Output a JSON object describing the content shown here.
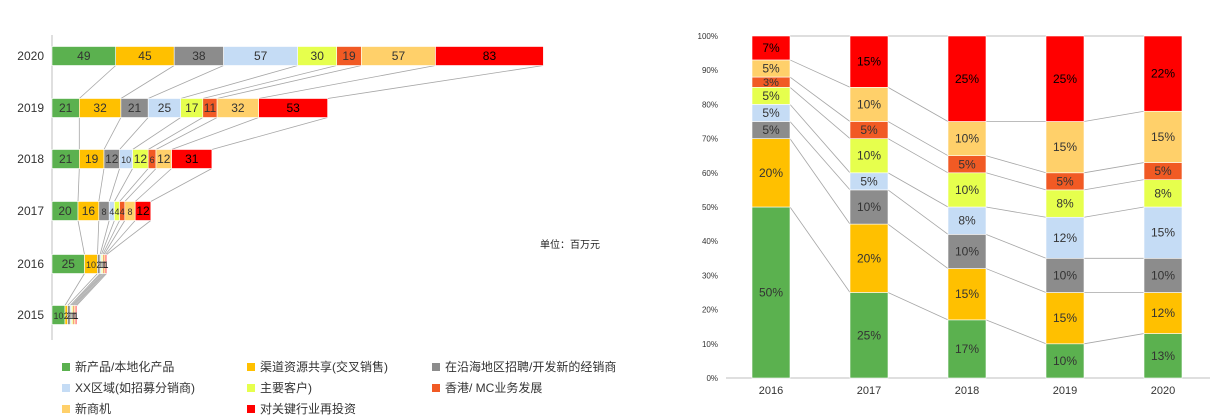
{
  "colors": [
    "#5BB14F",
    "#FFC000",
    "#8C8C8C",
    "#C5DCF5",
    "#E6FF4D",
    "#F15A24",
    "#FFD06A",
    "#FF0000"
  ],
  "unit_label": "单位：百万元",
  "legend": [
    "新产品/本地化产品",
    "渠道资源共享(交叉销售)",
    "在沿海地区招聘/开发新的经销商",
    "XX区域(如招募分销商)",
    "主要客户)",
    "香港/ MC业务发展",
    "新商机",
    "对关键行业再投资"
  ],
  "chart_data": [
    {
      "type": "bar",
      "orientation": "horizontal",
      "stacked": true,
      "categories": [
        "2020",
        "2019",
        "2018",
        "2017",
        "2016",
        "2015"
      ],
      "series": [
        {
          "name": "新产品/本地化产品",
          "values": [
            49,
            21,
            21,
            20,
            25,
            10
          ]
        },
        {
          "name": "渠道资源共享(交叉销售)",
          "values": [
            45,
            32,
            19,
            16,
            10,
            2
          ]
        },
        {
          "name": "在沿海地区招聘/开发新的经销商",
          "values": [
            38,
            21,
            12,
            8,
            2,
            2
          ]
        },
        {
          "name": "XX区域(如招募分销商)",
          "values": [
            57,
            25,
            10,
            4,
            1,
            1
          ]
        },
        {
          "name": "主要客户)",
          "values": [
            30,
            17,
            12,
            4,
            1,
            1
          ]
        },
        {
          "name": "香港/ MC业务发展",
          "values": [
            19,
            11,
            6,
            4,
            1,
            1
          ]
        },
        {
          "name": "新商机",
          "values": [
            57,
            32,
            12,
            8,
            1,
            1
          ]
        },
        {
          "name": "对关键行业再投资",
          "values": [
            83,
            53,
            31,
            12,
            1,
            1
          ]
        }
      ],
      "labels": [
        [
          "49",
          "45",
          "38",
          "57",
          "30",
          "19",
          "57",
          "83"
        ],
        [
          "21",
          "32",
          "21",
          "25",
          "17",
          "11",
          "32",
          "53"
        ],
        [
          "21",
          "19",
          "12",
          "10",
          "12",
          "6",
          "12",
          "31"
        ],
        [
          "20",
          "16",
          "8",
          "4",
          "4",
          "4",
          "8",
          "12"
        ],
        [
          "25",
          "10",
          "2",
          "1",
          "1",
          "1",
          "1",
          "1"
        ],
        [
          "10",
          "2",
          "2",
          "1",
          "1",
          "1",
          "1",
          "1"
        ]
      ]
    },
    {
      "type": "bar",
      "stacked": true,
      "percent": true,
      "categories": [
        "2016",
        "2017",
        "2018",
        "2019",
        "2020"
      ],
      "series": [
        {
          "name": "新产品/本地化产品",
          "values": [
            50,
            25,
            17,
            10,
            13
          ]
        },
        {
          "name": "渠道资源共享(交叉销售)",
          "values": [
            20,
            20,
            15,
            15,
            12
          ]
        },
        {
          "name": "在沿海地区招聘/开发新的经销商",
          "values": [
            5,
            10,
            10,
            10,
            10
          ]
        },
        {
          "name": "XX区域(如招募分销商)",
          "values": [
            5,
            5,
            8,
            12,
            15
          ]
        },
        {
          "name": "主要客户)",
          "values": [
            5,
            10,
            10,
            8,
            8
          ]
        },
        {
          "name": "香港/ MC业务发展",
          "values": [
            3,
            5,
            5,
            5,
            5
          ]
        },
        {
          "name": "新商机",
          "values": [
            5,
            10,
            10,
            15,
            15
          ]
        },
        {
          "name": "对关键行业再投资",
          "values": [
            7,
            15,
            25,
            25,
            22
          ]
        }
      ],
      "ylim": [
        0,
        100
      ],
      "yticks": [
        "0%",
        "10%",
        "20%",
        "30%",
        "40%",
        "50%",
        "60%",
        "70%",
        "80%",
        "90%",
        "100%"
      ]
    }
  ]
}
